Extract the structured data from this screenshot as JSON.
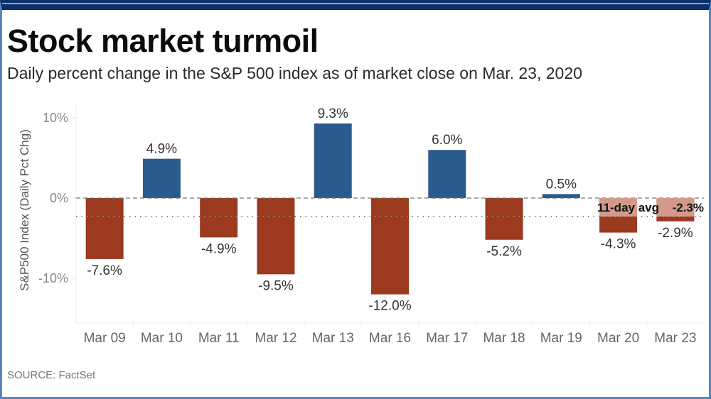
{
  "header": {
    "title": "Stock market turmoil",
    "subtitle": "Daily percent change in the S&P 500 index as of market close on Mar. 23, 2020"
  },
  "footer": {
    "source": "SOURCE: FactSet"
  },
  "colors": {
    "frame_top": "#0b2f6b",
    "frame_border": "#5b86bd",
    "positive": "#2b5a8c",
    "negative": "#9c3a20",
    "avg_label_bg": "#d9a597"
  },
  "chart_data": {
    "type": "bar",
    "title": "Stock market turmoil",
    "subtitle": "Daily percent change in the S&P 500 index as of market close on Mar. 23, 2020",
    "xlabel": "",
    "ylabel": "S&P500 Index (Daily Pct Chg)",
    "ylim": [
      -15.5,
      12.5
    ],
    "yticks": [
      10,
      0,
      -10
    ],
    "ytick_labels": [
      "10%",
      "0%",
      "-10%"
    ],
    "categories": [
      "Mar 09",
      "Mar 10",
      "Mar 11",
      "Mar 12",
      "Mar 13",
      "Mar 16",
      "Mar 17",
      "Mar 18",
      "Mar 19",
      "Mar 20",
      "Mar 23"
    ],
    "values": [
      -7.6,
      4.9,
      -4.9,
      -9.5,
      9.3,
      -12.0,
      6.0,
      -5.2,
      0.5,
      -4.3,
      -2.9
    ],
    "value_labels": [
      "-7.6%",
      "4.9%",
      "-4.9%",
      "-9.5%",
      "9.3%",
      "-12.0%",
      "6.0%",
      "-5.2%",
      "0.5%",
      "-4.3%",
      "-2.9%"
    ],
    "reference_lines": [
      {
        "name": "zero",
        "value": 0,
        "style": "dashed"
      },
      {
        "name": "11-day average",
        "value": -2.3,
        "style": "dotted"
      }
    ],
    "annotation": {
      "label": "11-day avg",
      "value_label": "-2.3%",
      "value": -2.3
    },
    "grid": false,
    "legend": "none"
  }
}
